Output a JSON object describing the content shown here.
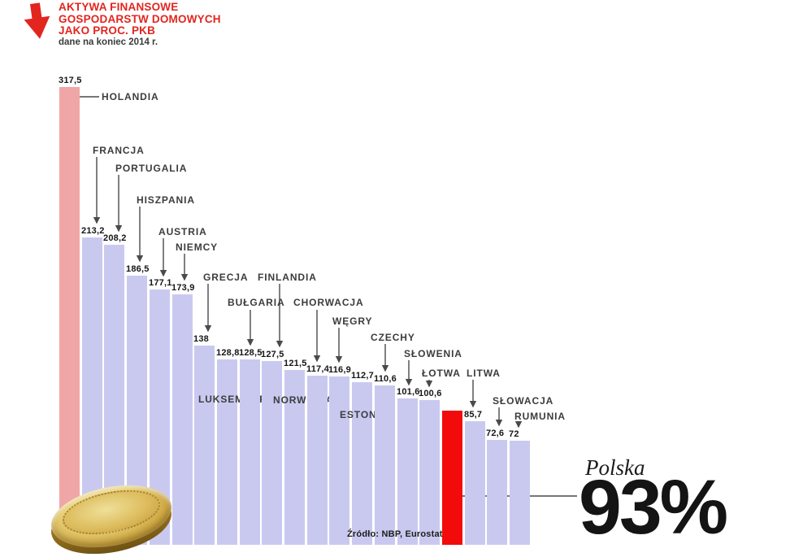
{
  "header": {
    "title_line1": "AKTYWA FINANSOWE",
    "title_line2": "GOSPODARSTW DOMOWYCH",
    "title_line3": "JAKO PROC. PKB",
    "subtitle": "dane na koniec 2014 r."
  },
  "source": "Źródło: NBP, Eurostat",
  "highlight": {
    "country": "Polska",
    "value_text": "93%"
  },
  "colors": {
    "bar_default": "#c9c9f0",
    "bar_first": "#f0a6a6",
    "bar_highlight": "#f30a0a",
    "title_red": "#e2251f",
    "connector": "#4a4a4a",
    "label_dark": "#161616"
  },
  "chart_data": {
    "type": "bar",
    "title": "AKTYWA FINANSOWE GOSPODARSTW DOMOWYCH JAKO PROC. PKB",
    "subtitle": "dane na koniec 2014 r.",
    "ylabel": "proc. PKB",
    "ylim": [
      0,
      330
    ],
    "grid": false,
    "legend": "none",
    "categories": [
      "HOLANDIA",
      "FRANCJA",
      "PORTUGALIA",
      "HISZPANIA",
      "AUSTRIA",
      "NIEMCY",
      "GRECJA",
      "LUKSEMBURG",
      "BUŁGARIA",
      "FINLANDIA",
      "NORWEGIA",
      "CHORWACJA",
      "WĘGRY",
      "ESTONIA",
      "CZECHY",
      "SŁOWENIA",
      "ŁOTWA",
      "POLSKA",
      "LITWA",
      "SŁOWACJA",
      "RUMUNIA"
    ],
    "values": [
      317.5,
      213.2,
      208.2,
      186.5,
      177.1,
      173.9,
      138,
      128.8,
      128.5,
      127.5,
      121.5,
      117.4,
      116.9,
      112.7,
      110.6,
      101.6,
      100.6,
      93,
      85.7,
      72.6,
      72
    ],
    "value_labels": [
      "317,5",
      "213,2",
      "208,2",
      "186,5",
      "177,1",
      "173,9",
      "138",
      "128,8",
      "128,5",
      "127,5",
      "121,5",
      "117,4",
      "116,9",
      "112,7",
      "110,6",
      "101,6",
      "100,6",
      "",
      "85,7",
      "72,6",
      "72"
    ],
    "highlight_index": 17,
    "first_bar_pink": true,
    "source": "Źródło: NBP, Eurostat"
  }
}
